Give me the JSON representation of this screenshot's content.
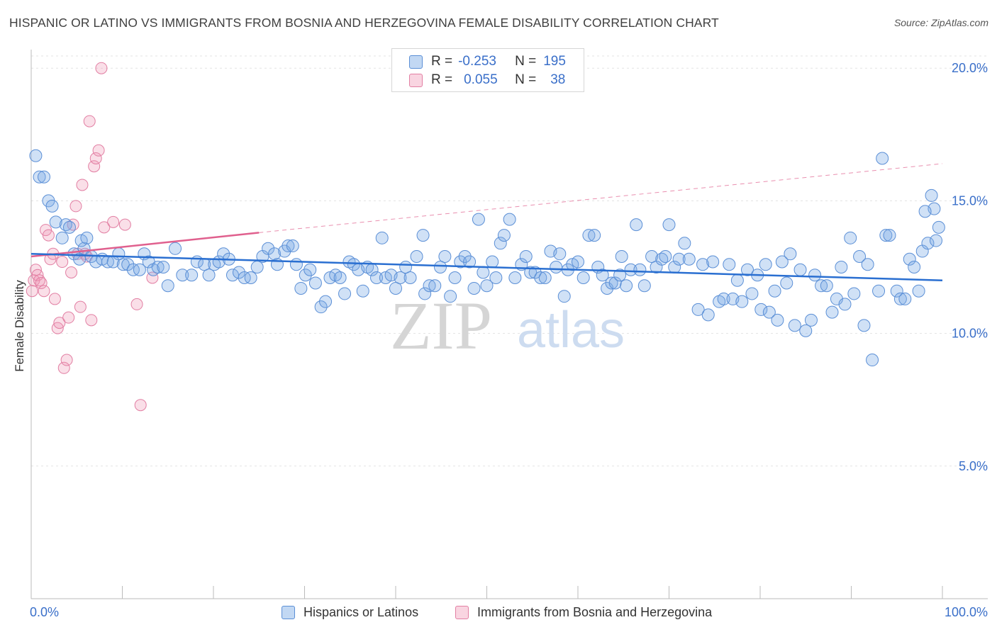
{
  "title": "HISPANIC OR LATINO VS IMMIGRANTS FROM BOSNIA AND HERZEGOVINA FEMALE DISABILITY CORRELATION CHART",
  "source": "Source: ZipAtlas.com",
  "watermark": {
    "zip": "ZIP",
    "atlas": "atlas"
  },
  "legend": {
    "rows": [
      {
        "r_label": "R =",
        "r_value": "-0.253",
        "n_label": "N =",
        "n_value": "195"
      },
      {
        "r_label": "R =",
        "r_value": "0.055",
        "n_label": "N =",
        "n_value": "38"
      }
    ]
  },
  "colors": {
    "blue_fill": "rgba(120,168,228,0.35)",
    "blue_stroke": "#5b8fd6",
    "blue_line": "#2a6fd1",
    "pink_fill": "rgba(240,150,180,0.30)",
    "pink_stroke": "#e27fa3",
    "pink_line": "#e0608e",
    "tick_label": "#3a6fc9",
    "grid": "#e3e3e3"
  },
  "chart_data": {
    "type": "scatter",
    "title": "HISPANIC OR LATINO VS IMMIGRANTS FROM BOSNIA AND HERZEGOVINA FEMALE DISABILITY CORRELATION CHART",
    "xlabel": "",
    "ylabel": "Female Disability",
    "xlim": [
      0,
      100
    ],
    "ylim": [
      0,
      20.7
    ],
    "y_ticks": [
      5,
      10,
      15,
      20
    ],
    "y_tick_labels": [
      "5.0%",
      "10.0%",
      "15.0%",
      "20.0%"
    ],
    "x_tick_labels": [
      "0.0%",
      "100.0%"
    ],
    "x_minor_ticks": [
      0,
      10,
      20,
      30,
      40,
      50,
      60,
      70,
      80,
      90,
      100
    ],
    "grid": "horizontal dashed",
    "legend_position": "top-center",
    "series": [
      {
        "name": "Hispanics or Latinos",
        "color": "blue",
        "R": -0.253,
        "N": 195,
        "trend": {
          "x": [
            0,
            100
          ],
          "y": [
            13.0,
            12.0
          ]
        },
        "points": [
          [
            0.5,
            16.7
          ],
          [
            0.9,
            15.9
          ],
          [
            1.4,
            15.9
          ],
          [
            1.9,
            15.0
          ],
          [
            2.3,
            14.8
          ],
          [
            2.7,
            14.2
          ],
          [
            3.4,
            13.6
          ],
          [
            3.8,
            14.1
          ],
          [
            4.2,
            14.0
          ],
          [
            4.7,
            13.0
          ],
          [
            5.3,
            12.8
          ],
          [
            5.8,
            13.2
          ],
          [
            5.5,
            13.5
          ],
          [
            6.1,
            13.6
          ],
          [
            6.6,
            12.9
          ],
          [
            7.1,
            12.7
          ],
          [
            7.8,
            12.8
          ],
          [
            8.4,
            12.7
          ],
          [
            9.0,
            12.7
          ],
          [
            9.6,
            13.0
          ],
          [
            10.1,
            12.6
          ],
          [
            10.6,
            12.6
          ],
          [
            11.2,
            12.4
          ],
          [
            11.9,
            12.4
          ],
          [
            12.4,
            13.0
          ],
          [
            12.9,
            12.7
          ],
          [
            13.4,
            12.4
          ],
          [
            13.9,
            12.5
          ],
          [
            14.5,
            12.5
          ],
          [
            15.0,
            11.8
          ],
          [
            15.8,
            13.2
          ],
          [
            16.6,
            12.2
          ],
          [
            17.6,
            12.2
          ],
          [
            18.2,
            12.7
          ],
          [
            19.0,
            12.6
          ],
          [
            19.5,
            12.2
          ],
          [
            20.1,
            12.6
          ],
          [
            20.6,
            12.7
          ],
          [
            21.1,
            13.0
          ],
          [
            21.7,
            12.8
          ],
          [
            22.1,
            12.2
          ],
          [
            22.8,
            12.3
          ],
          [
            23.4,
            12.1
          ],
          [
            24.1,
            12.1
          ],
          [
            24.8,
            12.5
          ],
          [
            25.4,
            12.9
          ],
          [
            26.0,
            13.2
          ],
          [
            26.7,
            13.0
          ],
          [
            27.0,
            12.6
          ],
          [
            27.8,
            13.1
          ],
          [
            28.2,
            13.3
          ],
          [
            28.7,
            13.3
          ],
          [
            29.1,
            12.6
          ],
          [
            29.6,
            11.7
          ],
          [
            30.1,
            12.2
          ],
          [
            30.6,
            12.4
          ],
          [
            31.2,
            11.9
          ],
          [
            31.8,
            11.0
          ],
          [
            32.3,
            11.2
          ],
          [
            32.8,
            12.1
          ],
          [
            33.4,
            12.2
          ],
          [
            33.9,
            12.1
          ],
          [
            34.4,
            11.5
          ],
          [
            34.9,
            12.7
          ],
          [
            35.4,
            12.6
          ],
          [
            35.9,
            12.4
          ],
          [
            36.4,
            11.6
          ],
          [
            36.9,
            12.5
          ],
          [
            37.4,
            12.4
          ],
          [
            37.9,
            12.1
          ],
          [
            38.5,
            13.6
          ],
          [
            38.9,
            12.1
          ],
          [
            39.5,
            12.2
          ],
          [
            40.0,
            11.7
          ],
          [
            40.5,
            12.1
          ],
          [
            41.1,
            12.5
          ],
          [
            41.6,
            12.1
          ],
          [
            42.3,
            12.9
          ],
          [
            43.0,
            13.7
          ],
          [
            43.2,
            11.5
          ],
          [
            43.7,
            11.8
          ],
          [
            44.3,
            11.8
          ],
          [
            44.9,
            12.5
          ],
          [
            45.4,
            12.9
          ],
          [
            46.0,
            11.4
          ],
          [
            46.5,
            12.1
          ],
          [
            47.1,
            12.7
          ],
          [
            47.6,
            12.9
          ],
          [
            48.1,
            12.7
          ],
          [
            48.6,
            11.7
          ],
          [
            49.1,
            14.3
          ],
          [
            49.6,
            12.3
          ],
          [
            50.0,
            11.8
          ],
          [
            50.6,
            12.7
          ],
          [
            51.0,
            12.1
          ],
          [
            51.5,
            13.4
          ],
          [
            51.9,
            13.7
          ],
          [
            52.5,
            14.3
          ],
          [
            53.1,
            12.1
          ],
          [
            53.8,
            12.6
          ],
          [
            54.3,
            12.9
          ],
          [
            54.8,
            12.3
          ],
          [
            55.3,
            12.3
          ],
          [
            55.9,
            12.1
          ],
          [
            56.4,
            12.1
          ],
          [
            57.0,
            13.1
          ],
          [
            57.6,
            12.5
          ],
          [
            58.0,
            13.0
          ],
          [
            58.5,
            11.4
          ],
          [
            58.9,
            12.4
          ],
          [
            59.4,
            12.6
          ],
          [
            60.0,
            12.7
          ],
          [
            60.6,
            12.1
          ],
          [
            61.2,
            13.7
          ],
          [
            61.8,
            13.7
          ],
          [
            62.2,
            12.5
          ],
          [
            62.7,
            12.2
          ],
          [
            63.2,
            11.7
          ],
          [
            63.7,
            11.9
          ],
          [
            64.1,
            11.9
          ],
          [
            64.6,
            12.2
          ],
          [
            64.8,
            12.9
          ],
          [
            65.3,
            11.8
          ],
          [
            65.8,
            12.4
          ],
          [
            66.4,
            14.1
          ],
          [
            66.8,
            12.4
          ],
          [
            67.3,
            11.8
          ],
          [
            68.1,
            12.9
          ],
          [
            68.6,
            12.5
          ],
          [
            69.2,
            12.8
          ],
          [
            69.6,
            12.9
          ],
          [
            70.0,
            14.1
          ],
          [
            70.6,
            12.5
          ],
          [
            71.1,
            12.8
          ],
          [
            71.7,
            13.4
          ],
          [
            72.2,
            12.8
          ],
          [
            73.2,
            10.9
          ],
          [
            73.7,
            12.6
          ],
          [
            74.3,
            10.7
          ],
          [
            74.8,
            12.7
          ],
          [
            75.5,
            11.2
          ],
          [
            76.0,
            11.3
          ],
          [
            76.6,
            12.6
          ],
          [
            77.0,
            11.3
          ],
          [
            77.5,
            12.0
          ],
          [
            78.0,
            11.2
          ],
          [
            78.6,
            12.4
          ],
          [
            79.1,
            11.5
          ],
          [
            79.7,
            12.2
          ],
          [
            80.1,
            10.9
          ],
          [
            80.6,
            12.6
          ],
          [
            81.0,
            10.8
          ],
          [
            81.6,
            11.6
          ],
          [
            81.9,
            10.5
          ],
          [
            82.4,
            12.7
          ],
          [
            82.9,
            11.9
          ],
          [
            83.3,
            13.0
          ],
          [
            83.8,
            10.3
          ],
          [
            84.4,
            12.4
          ],
          [
            85.0,
            10.1
          ],
          [
            85.6,
            10.5
          ],
          [
            86.0,
            12.2
          ],
          [
            86.7,
            11.8
          ],
          [
            87.3,
            11.8
          ],
          [
            87.9,
            10.8
          ],
          [
            88.4,
            11.3
          ],
          [
            88.9,
            12.5
          ],
          [
            89.3,
            11.1
          ],
          [
            89.9,
            13.6
          ],
          [
            90.3,
            11.5
          ],
          [
            90.9,
            12.9
          ],
          [
            91.4,
            10.3
          ],
          [
            91.8,
            12.6
          ],
          [
            92.3,
            9.0
          ],
          [
            93.0,
            11.6
          ],
          [
            93.4,
            16.6
          ],
          [
            93.8,
            13.7
          ],
          [
            94.2,
            13.7
          ],
          [
            95.0,
            11.6
          ],
          [
            95.4,
            11.3
          ],
          [
            95.9,
            11.3
          ],
          [
            96.4,
            12.8
          ],
          [
            96.9,
            12.5
          ],
          [
            97.4,
            11.6
          ],
          [
            97.8,
            13.1
          ],
          [
            98.4,
            13.4
          ],
          [
            98.8,
            15.2
          ],
          [
            99.3,
            13.5
          ],
          [
            99.6,
            14.0
          ],
          [
            99.1,
            14.7
          ],
          [
            98.1,
            14.6
          ]
        ]
      },
      {
        "name": "Immigrants from Bosnia and Herzegovina",
        "color": "pink",
        "R": 0.055,
        "N": 38,
        "trend": {
          "x": [
            0,
            25
          ],
          "y": [
            12.9,
            13.8
          ]
        },
        "trend_extrapolated": {
          "x": [
            25,
            100
          ],
          "y": [
            13.8,
            16.4
          ]
        },
        "points": [
          [
            0.1,
            11.6
          ],
          [
            0.3,
            12.0
          ],
          [
            0.5,
            12.4
          ],
          [
            0.7,
            12.2
          ],
          [
            0.9,
            12.0
          ],
          [
            1.1,
            11.9
          ],
          [
            1.4,
            11.6
          ],
          [
            1.6,
            13.9
          ],
          [
            1.9,
            13.7
          ],
          [
            2.1,
            12.8
          ],
          [
            2.4,
            13.0
          ],
          [
            2.6,
            11.3
          ],
          [
            2.9,
            10.2
          ],
          [
            3.1,
            10.4
          ],
          [
            3.4,
            12.7
          ],
          [
            3.6,
            8.7
          ],
          [
            3.9,
            9.0
          ],
          [
            4.1,
            10.6
          ],
          [
            4.4,
            12.3
          ],
          [
            4.6,
            14.1
          ],
          [
            4.9,
            14.8
          ],
          [
            5.1,
            13.0
          ],
          [
            5.4,
            11.0
          ],
          [
            5.6,
            15.6
          ],
          [
            5.9,
            13.0
          ],
          [
            6.1,
            12.9
          ],
          [
            6.4,
            18.0
          ],
          [
            6.6,
            10.5
          ],
          [
            6.9,
            16.3
          ],
          [
            7.1,
            16.6
          ],
          [
            7.4,
            16.9
          ],
          [
            7.7,
            20.0
          ],
          [
            8.0,
            14.0
          ],
          [
            9.0,
            14.2
          ],
          [
            10.3,
            14.1
          ],
          [
            11.6,
            11.1
          ],
          [
            12.0,
            7.3
          ],
          [
            13.3,
            12.1
          ]
        ]
      }
    ]
  },
  "bottom_legend": [
    {
      "label": "Hispanics or Latinos"
    },
    {
      "label": "Immigrants from Bosnia and Herzegovina"
    }
  ]
}
